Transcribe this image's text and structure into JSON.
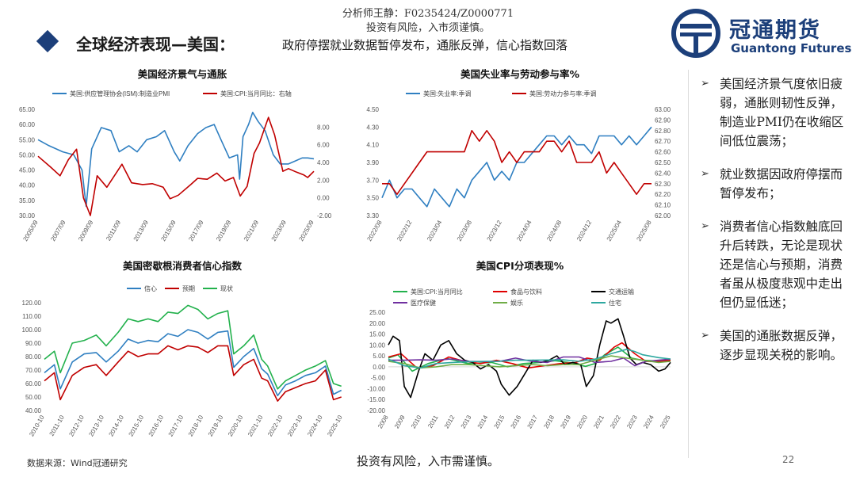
{
  "header": {
    "analyst": "分析师王静：F0235424/Z0000771",
    "risk_top": "投资有风险，入市须谨慎。",
    "title": "全球经济表现—美国：",
    "subtitle": "政府停摆就业数据暂停发布，通胀反弹，信心指数回落"
  },
  "logo": {
    "cn": "冠通期货",
    "en": "Guantong Futures"
  },
  "colors": {
    "brand": "#1c3f7a",
    "blue": "#2f7fc1",
    "red": "#c00000",
    "green": "#22b14c",
    "black": "#000000",
    "orange": "#ffb000",
    "purple": "#7030a0",
    "teal": "#2ea8a0",
    "lightgreen": "#70ad47"
  },
  "chart_data": [
    {
      "type": "line",
      "title": "美国经济景气与通胀",
      "x_ticks": [
        "2005/09",
        "2007/09",
        "2009/09",
        "2011/09",
        "2013/09",
        "2015/09",
        "2017/09",
        "2019/09",
        "2021/09",
        "2023/09",
        "2025/09"
      ],
      "y_left_ticks": [
        "65.00",
        "60.00",
        "55.00",
        "50.00",
        "45.00",
        "40.00",
        "35.00",
        "30.00"
      ],
      "y_right_ticks": [
        "8.00",
        "6.00",
        "4.00",
        "2.00",
        "0.00",
        "-2.00"
      ],
      "y_left_range": [
        30,
        65
      ],
      "y_right_range": [
        -2,
        10
      ],
      "series": [
        {
          "name": "美国:供应管理协会(ISM):制造业PMI",
          "axis": "left",
          "color": "#2f7fc1",
          "x": [
            2005.7,
            2006.5,
            2007.5,
            2008.3,
            2008.9,
            2009.2,
            2009.6,
            2010.3,
            2011.0,
            2011.6,
            2012.3,
            2012.9,
            2013.6,
            2014.3,
            2014.9,
            2015.6,
            2016.0,
            2016.6,
            2017.3,
            2017.9,
            2018.5,
            2019.0,
            2019.6,
            2020.2,
            2020.35,
            2020.6,
            2021.0,
            2021.3,
            2021.7,
            2022.2,
            2022.8,
            2023.3,
            2023.9,
            2024.4,
            2024.9,
            2025.3,
            2025.75
          ],
          "y": [
            55,
            53,
            51,
            50,
            45,
            33,
            52,
            59,
            58,
            51,
            53,
            51,
            55,
            56,
            58,
            51,
            48,
            53,
            57,
            59,
            60,
            55,
            49,
            50,
            42,
            56,
            60,
            64,
            61,
            58,
            50,
            47,
            47,
            48,
            49,
            49,
            48.7
          ]
        },
        {
          "name": "美国:CPI:当月同比：右轴",
          "axis": "right",
          "color": "#c00000",
          "x": [
            2005.7,
            2006.6,
            2007.3,
            2007.9,
            2008.5,
            2009.0,
            2009.5,
            2010.0,
            2010.7,
            2011.8,
            2012.5,
            2013.3,
            2014.0,
            2014.8,
            2015.3,
            2015.9,
            2016.8,
            2017.3,
            2018.0,
            2018.7,
            2019.3,
            2019.9,
            2020.4,
            2020.9,
            2021.4,
            2021.8,
            2022.45,
            2022.9,
            2023.5,
            2023.9,
            2024.5,
            2025.0,
            2025.3,
            2025.75
          ],
          "y": [
            4.7,
            3.5,
            2.5,
            4.3,
            5.5,
            0.0,
            -2.0,
            2.5,
            1.2,
            3.8,
            1.7,
            1.5,
            1.6,
            1.2,
            -0.1,
            0.3,
            1.5,
            2.2,
            2.1,
            2.8,
            1.9,
            2.3,
            0.2,
            1.3,
            5.0,
            6.2,
            9.1,
            7.1,
            3.0,
            3.3,
            2.9,
            2.6,
            2.3,
            3.0
          ]
        }
      ]
    },
    {
      "type": "line",
      "title": "美国失业率与劳动参与率%",
      "x_ticks": [
        "2022/08",
        "2022/12",
        "2023/04",
        "2023/08",
        "2023/12",
        "2024/04",
        "2024/08",
        "2024/12",
        "2025/04",
        "2025/08"
      ],
      "y_left_ticks": [
        "4.50",
        "4.30",
        "4.10",
        "3.90",
        "3.70",
        "3.50",
        "3.30"
      ],
      "y_right_ticks": [
        "63.00",
        "62.90",
        "62.80",
        "62.70",
        "62.60",
        "62.50",
        "62.40",
        "62.30",
        "62.20",
        "62.10",
        "62.00"
      ],
      "y_left_range": [
        3.3,
        4.5
      ],
      "y_right_range": [
        62.0,
        63.0
      ],
      "series": [
        {
          "name": "美国:失业率:季调",
          "axis": "left",
          "color": "#2f7fc1",
          "x": [
            0,
            1,
            2,
            3,
            4,
            5,
            6,
            7,
            8,
            9,
            10,
            11,
            12,
            13,
            14,
            15,
            16,
            17,
            18,
            19,
            20,
            21,
            22,
            23,
            24,
            25,
            26,
            27,
            28,
            29,
            30,
            31,
            32,
            33,
            34,
            35,
            36
          ],
          "y": [
            3.5,
            3.7,
            3.5,
            3.6,
            3.6,
            3.5,
            3.4,
            3.6,
            3.5,
            3.4,
            3.6,
            3.5,
            3.7,
            3.8,
            3.9,
            3.7,
            3.8,
            3.7,
            3.9,
            3.9,
            4.0,
            4.1,
            4.2,
            4.2,
            4.1,
            4.2,
            4.1,
            4.1,
            4.0,
            4.2,
            4.2,
            4.2,
            4.1,
            4.2,
            4.1,
            4.2,
            4.3
          ]
        },
        {
          "name": "美国:劳动力参与率:季调",
          "axis": "right",
          "color": "#c00000",
          "x": [
            0,
            1,
            2,
            3,
            4,
            5,
            6,
            7,
            8,
            9,
            10,
            11,
            12,
            13,
            14,
            15,
            16,
            17,
            18,
            19,
            20,
            21,
            22,
            23,
            24,
            25,
            26,
            27,
            28,
            29,
            30,
            31,
            32,
            33,
            34,
            35,
            36
          ],
          "y": [
            62.3,
            62.3,
            62.2,
            62.3,
            62.4,
            62.5,
            62.6,
            62.6,
            62.6,
            62.6,
            62.6,
            62.6,
            62.8,
            62.7,
            62.8,
            62.7,
            62.5,
            62.6,
            62.5,
            62.6,
            62.6,
            62.6,
            62.7,
            62.7,
            62.6,
            62.7,
            62.5,
            62.5,
            62.5,
            62.6,
            62.4,
            62.5,
            62.4,
            62.3,
            62.2,
            62.3,
            62.3
          ]
        }
      ]
    },
    {
      "type": "line",
      "title": "美国密歇根消费者信心指数",
      "x_ticks": [
        "2010-10",
        "2011-10",
        "2012-10",
        "2013-10",
        "2014-10",
        "2015-10",
        "2016-10",
        "2017-10",
        "2018-10",
        "2019-10",
        "2020-10",
        "2021-10",
        "2022-10",
        "2023-10",
        "2024-10",
        "2025-10"
      ],
      "y_left_ticks": [
        "120.00",
        "110.00",
        "100.00",
        "90.00",
        "80.00",
        "70.00",
        "60.00",
        "50.00",
        "40.00"
      ],
      "y_left_range": [
        40,
        120
      ],
      "series": [
        {
          "name": "信心",
          "color": "#2f7fc1",
          "x": [
            2010.8,
            2011.3,
            2011.6,
            2012.2,
            2012.8,
            2013.4,
            2013.9,
            2014.5,
            2015.0,
            2015.5,
            2016.0,
            2016.5,
            2017.0,
            2017.5,
            2018.0,
            2018.5,
            2019.0,
            2019.5,
            2020.0,
            2020.3,
            2020.8,
            2021.3,
            2021.7,
            2022.0,
            2022.5,
            2022.9,
            2023.4,
            2023.9,
            2024.4,
            2024.9,
            2025.3,
            2025.7
          ],
          "y": [
            68,
            74,
            56,
            76,
            82,
            83,
            76,
            84,
            93,
            90,
            92,
            91,
            97,
            95,
            100,
            98,
            93,
            98,
            99,
            72,
            80,
            86,
            71,
            67,
            51,
            59,
            62,
            66,
            68,
            73,
            52,
            55
          ]
        },
        {
          "name": "预期",
          "color": "#c00000",
          "x": [
            2010.8,
            2011.3,
            2011.6,
            2012.2,
            2012.8,
            2013.4,
            2013.9,
            2014.5,
            2015.0,
            2015.5,
            2016.0,
            2016.5,
            2017.0,
            2017.5,
            2018.0,
            2018.5,
            2019.0,
            2019.5,
            2020.0,
            2020.3,
            2020.8,
            2021.3,
            2021.7,
            2022.0,
            2022.5,
            2022.9,
            2023.4,
            2023.9,
            2024.4,
            2024.9,
            2025.3,
            2025.7
          ],
          "y": [
            62,
            68,
            48,
            66,
            72,
            74,
            66,
            76,
            84,
            80,
            82,
            82,
            88,
            85,
            88,
            87,
            83,
            88,
            88,
            66,
            74,
            78,
            64,
            62,
            47,
            54,
            57,
            60,
            62,
            70,
            48,
            50
          ]
        },
        {
          "name": "现状",
          "color": "#22b14c",
          "x": [
            2010.8,
            2011.3,
            2011.6,
            2012.2,
            2012.8,
            2013.4,
            2013.9,
            2014.5,
            2015.0,
            2015.5,
            2016.0,
            2016.5,
            2017.0,
            2017.5,
            2018.0,
            2018.5,
            2019.0,
            2019.5,
            2020.0,
            2020.3,
            2020.8,
            2021.3,
            2021.7,
            2022.0,
            2022.5,
            2022.9,
            2023.4,
            2023.9,
            2024.4,
            2024.9,
            2025.3,
            2025.7
          ],
          "y": [
            78,
            84,
            68,
            90,
            92,
            96,
            88,
            98,
            108,
            106,
            108,
            106,
            113,
            112,
            118,
            115,
            108,
            112,
            114,
            82,
            88,
            96,
            78,
            73,
            56,
            62,
            66,
            70,
            73,
            77,
            60,
            58
          ]
        }
      ]
    },
    {
      "type": "line",
      "title": "美国CPI分项表现%",
      "x_ticks": [
        "2008",
        "2009",
        "2010",
        "2011",
        "2012",
        "2013",
        "2014",
        "2015",
        "2016",
        "2017",
        "2018",
        "2019",
        "2020",
        "2021",
        "2022",
        "2023",
        "2024",
        "2025"
      ],
      "y_left_ticks": [
        "25.00",
        "20.00",
        "15.00",
        "10.00",
        "5.00",
        "0.00",
        "-5.00",
        "-10.00",
        "-15.00",
        "-20.00"
      ],
      "y_left_range": [
        -20,
        25
      ],
      "series": [
        {
          "name": "美国:CPI:当月同比",
          "color": "#22b14c",
          "x": [
            2008,
            2008.6,
            2009.5,
            2010.5,
            2011.7,
            2013,
            2014.5,
            2015.5,
            2016.5,
            2017.5,
            2018.5,
            2019.5,
            2020.4,
            2021,
            2021.6,
            2022.45,
            2023.3,
            2024,
            2025,
            2025.75
          ],
          "y": [
            4,
            5.5,
            -2,
            1.5,
            3.8,
            1.5,
            2,
            0,
            1.5,
            2,
            2.8,
            1.8,
            0.2,
            1.5,
            5.5,
            9,
            4,
            3,
            2.6,
            3
          ]
        },
        {
          "name": "食品与饮料",
          "color": "#e00000",
          "x": [
            2008,
            2008.8,
            2009.8,
            2010.8,
            2011.8,
            2012.8,
            2013.8,
            2014.8,
            2015.8,
            2016.8,
            2017.8,
            2018.8,
            2019.8,
            2020.5,
            2021.3,
            2022.2,
            2022.7,
            2023.5,
            2024.2,
            2025,
            2025.75
          ],
          "y": [
            4.5,
            6,
            -0.5,
            0.5,
            4.5,
            2.5,
            1.5,
            3,
            1.5,
            -0.5,
            0.5,
            1.5,
            2,
            4,
            3,
            9,
            11,
            6,
            2.5,
            2.4,
            3
          ]
        },
        {
          "name": "交通运输",
          "color": "#000000",
          "x": [
            2008,
            2008.3,
            2008.7,
            2009.0,
            2009.4,
            2009.9,
            2010.3,
            2010.8,
            2011.3,
            2011.8,
            2012.3,
            2012.8,
            2013.3,
            2013.8,
            2014.3,
            2014.8,
            2015.1,
            2015.6,
            2016.1,
            2016.6,
            2017.1,
            2017.6,
            2018.1,
            2018.6,
            2019.1,
            2019.6,
            2020.1,
            2020.45,
            2020.9,
            2021.3,
            2021.7,
            2022.0,
            2022.45,
            2022.8,
            2023.2,
            2023.6,
            2024.0,
            2024.5,
            2025.0,
            2025.4,
            2025.75
          ],
          "y": [
            10,
            14,
            12,
            -9,
            -14,
            -2,
            6,
            3,
            10,
            12,
            6,
            3,
            2,
            -1,
            1,
            -2,
            -8,
            -13,
            -9,
            -3,
            3,
            2,
            3,
            5,
            1,
            2,
            1,
            -9,
            -4,
            10,
            21,
            20,
            22,
            14,
            4,
            1,
            2,
            1,
            -2,
            -1,
            2
          ]
        },
        {
          "name": "医疗保健",
          "color": "#7030a0",
          "x": [
            2008,
            2009,
            2010,
            2011,
            2012,
            2013,
            2014,
            2015,
            2016,
            2017,
            2018,
            2019,
            2020,
            2021,
            2022,
            2022.8,
            2023.5,
            2024.2,
            2025,
            2025.75
          ],
          "y": [
            3,
            3,
            3.2,
            3,
            3.6,
            2.5,
            2.4,
            2.5,
            4,
            2.5,
            2,
            4.5,
            4.5,
            2,
            2.5,
            4,
            0.5,
            2.5,
            3,
            3.5
          ]
        },
        {
          "name": "娱乐",
          "color": "#70ad47",
          "x": [
            2008,
            2009,
            2010,
            2011,
            2012,
            2013,
            2014,
            2015,
            2016,
            2017,
            2018,
            2019,
            2020,
            2021,
            2022,
            2023,
            2024,
            2025,
            2025.75
          ],
          "y": [
            2.5,
            1.5,
            -0.5,
            0,
            1,
            1,
            0.5,
            0,
            0.5,
            1,
            0.5,
            1,
            1,
            3,
            5,
            4,
            3,
            2,
            2.5
          ]
        },
        {
          "name": "住宅",
          "color": "#2ea8a0",
          "x": [
            2008,
            2009,
            2010,
            2011,
            2012,
            2013,
            2014,
            2015,
            2016,
            2017,
            2018,
            2019,
            2020,
            2021,
            2022,
            2023,
            2023.5,
            2024,
            2025,
            2025.75
          ],
          "y": [
            3.5,
            0.5,
            -0.5,
            1.5,
            2,
            2.3,
            2.5,
            2.5,
            3,
            3,
            3.1,
            3.2,
            2.5,
            3.5,
            6,
            8,
            7,
            5.5,
            4.2,
            3.6
          ]
        }
      ]
    }
  ],
  "side": {
    "items": [
      "美国经济景气度依旧疲弱，通胀则韧性反弹，制造业PMI仍在收缩区间低位震荡；",
      "就业数据因政府停摆而暂停发布；",
      "消费者信心指数触底回升后转跌，无论是现状还是信心与预期，消费者虽从极度悲观中走出但仍显低迷；",
      "美国的通胀数据反弹，逐步显现关税的影响。"
    ]
  },
  "footer": {
    "source": "数据来源：Wind冠通研究",
    "risk": "投资有风险，入市需谨慎。",
    "page": "22"
  }
}
